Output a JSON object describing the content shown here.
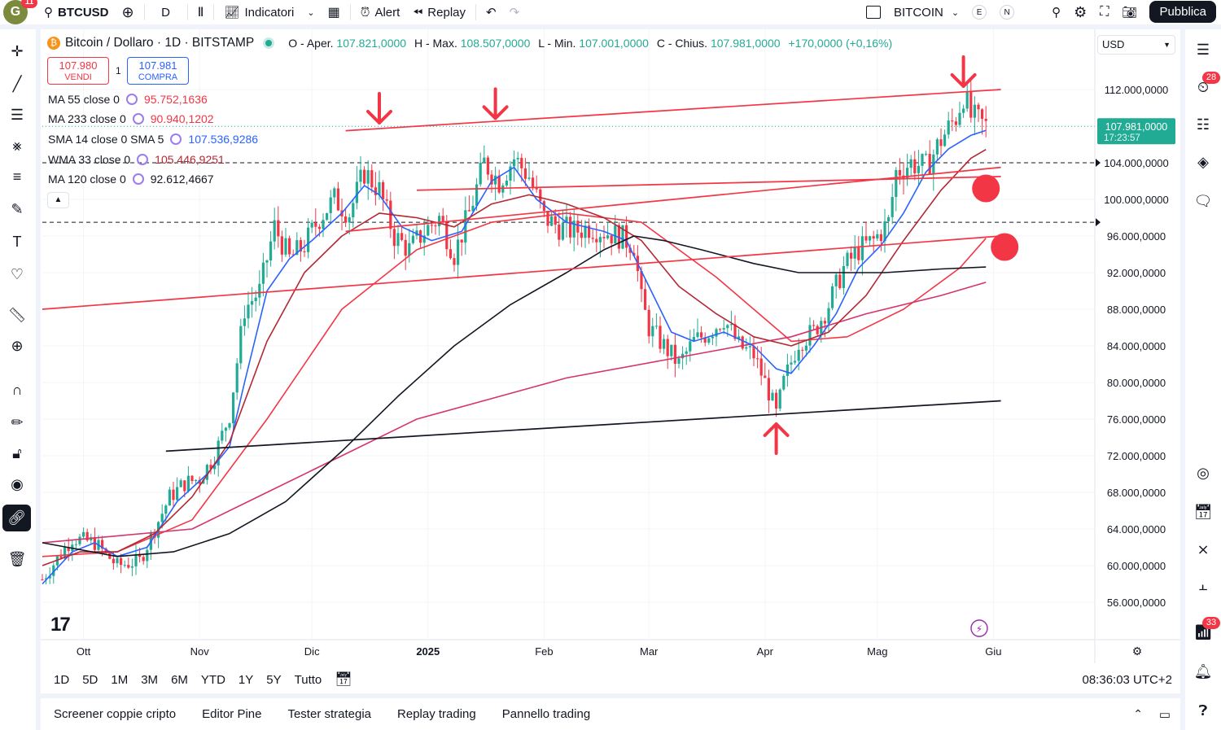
{
  "topbar": {
    "logo_letter": "G",
    "logo_badge": "11",
    "symbol": "BTCUSD",
    "interval": "D",
    "indicators_label": "Indicatori",
    "alert_label": "Alert",
    "replay_label": "Replay",
    "symbol_right": "BITCOIN",
    "e_label": "E",
    "n_label": "N",
    "publish_label": "Pubblica"
  },
  "legend": {
    "title": "Bitcoin / Dollaro · 1D · BITSTAMP",
    "open_label": "O - Aper.",
    "open": "107.821,0000",
    "high_label": "H - Max.",
    "high": "108.507,0000",
    "low_label": "L - Min.",
    "low": "107.001,0000",
    "close_label": "C - Chius.",
    "close": "107.981,0000",
    "change": "+170,0000 (+0,16%)",
    "sell_price": "107.980",
    "sell_label": "VENDI",
    "qty": "1",
    "buy_price": "107.981",
    "buy_label": "COMPRA",
    "indicators": [
      {
        "label": "MA 55 close 0",
        "value": "95.752,1636",
        "color": "#f23645"
      },
      {
        "label": "MA 233 close 0",
        "value": "90.940,1202",
        "color": "#f23645"
      },
      {
        "label": "SMA 14 close 0 SMA 5",
        "value": "107.536,9286",
        "color": "#2962ff"
      },
      {
        "label": "WMA 33 close 0",
        "value": "105.446,9251",
        "color": "#b22833"
      },
      {
        "label": "MA 120 close 0",
        "value": "92.612,4667",
        "color": "#131722"
      }
    ],
    "currency": "USD"
  },
  "chart_data": {
    "type": "candlestick",
    "symbol": "BTCUSD",
    "interval": "1D",
    "exchange": "BITSTAMP",
    "y_ticks": [
      56000,
      60000,
      64000,
      68000,
      72000,
      76000,
      80000,
      84000,
      88000,
      92000,
      96000,
      100000,
      104000,
      108000,
      112000
    ],
    "y_tick_labels": [
      "56.000,0000",
      "60.000,0000",
      "64.000,0000",
      "68.000,0000",
      "72.000,0000",
      "76.000,0000",
      "80.000,0000",
      "84.000,0000",
      "88.000,0000",
      "92.000,0000",
      "96.000,0000",
      "100.000,0000",
      "104.000,0000",
      "108.000,0000",
      "112.000,0000"
    ],
    "ylim": [
      53000,
      115500
    ],
    "x_ticks": [
      {
        "label": "Ott",
        "day": 11
      },
      {
        "label": "Nov",
        "day": 42
      },
      {
        "label": "Dic",
        "day": 72
      },
      {
        "label": "2025",
        "day": 103
      },
      {
        "label": "Feb",
        "day": 134
      },
      {
        "label": "Mar",
        "day": 162
      },
      {
        "label": "Apr",
        "day": 193
      },
      {
        "label": "Mag",
        "day": 223
      },
      {
        "label": "Giu",
        "day": 254
      }
    ],
    "last_price_label": "107.981,0000",
    "countdown": "17:23:57",
    "last_price": 107981,
    "dashed_levels": [
      104000,
      97500
    ],
    "close_path": [
      [
        0,
        58500
      ],
      [
        8,
        63000
      ],
      [
        14,
        62500
      ],
      [
        20,
        60000
      ],
      [
        26,
        60500
      ],
      [
        30,
        64000
      ],
      [
        34,
        67500
      ],
      [
        38,
        69000
      ],
      [
        42,
        69500
      ],
      [
        46,
        72000
      ],
      [
        50,
        76500
      ],
      [
        54,
        88000
      ],
      [
        58,
        90000
      ],
      [
        62,
        97000
      ],
      [
        66,
        93500
      ],
      [
        70,
        95000
      ],
      [
        74,
        98000
      ],
      [
        78,
        100000
      ],
      [
        82,
        98500
      ],
      [
        86,
        103000
      ],
      [
        90,
        101000
      ],
      [
        94,
        96000
      ],
      [
        98,
        94500
      ],
      [
        102,
        96500
      ],
      [
        106,
        98000
      ],
      [
        110,
        94000
      ],
      [
        114,
        98500
      ],
      [
        118,
        104000
      ],
      [
        122,
        102000
      ],
      [
        126,
        104500
      ],
      [
        130,
        102500
      ],
      [
        134,
        98000
      ],
      [
        138,
        97000
      ],
      [
        142,
        96500
      ],
      [
        146,
        97000
      ],
      [
        150,
        96500
      ],
      [
        154,
        96000
      ],
      [
        158,
        95000
      ],
      [
        160,
        89000
      ],
      [
        162,
        86000
      ],
      [
        166,
        84000
      ],
      [
        170,
        82000
      ],
      [
        174,
        84500
      ],
      [
        178,
        85500
      ],
      [
        182,
        87000
      ],
      [
        186,
        84000
      ],
      [
        190,
        83000
      ],
      [
        194,
        79000
      ],
      [
        196,
        76500
      ],
      [
        198,
        80000
      ],
      [
        202,
        84500
      ],
      [
        206,
        85500
      ],
      [
        210,
        88500
      ],
      [
        214,
        92500
      ],
      [
        218,
        94500
      ],
      [
        222,
        95500
      ],
      [
        226,
        97500
      ],
      [
        228,
        103000
      ],
      [
        232,
        104000
      ],
      [
        236,
        103500
      ],
      [
        240,
        106500
      ],
      [
        244,
        109000
      ],
      [
        246,
        111500
      ],
      [
        248,
        109000
      ],
      [
        252,
        107981
      ]
    ],
    "series": [
      {
        "name": "MA 55 close 0",
        "color": "#f23645",
        "points": [
          [
            0,
            61000
          ],
          [
            20,
            61500
          ],
          [
            40,
            65000
          ],
          [
            60,
            76000
          ],
          [
            80,
            88000
          ],
          [
            100,
            94500
          ],
          [
            120,
            97500
          ],
          [
            140,
            98500
          ],
          [
            160,
            97500
          ],
          [
            180,
            91500
          ],
          [
            200,
            84500
          ],
          [
            215,
            85000
          ],
          [
            230,
            88000
          ],
          [
            245,
            92500
          ],
          [
            252,
            95752
          ]
        ]
      },
      {
        "name": "MA 233 close 0",
        "color": "#d6336c",
        "points": [
          [
            0,
            62500
          ],
          [
            40,
            64000
          ],
          [
            60,
            68000
          ],
          [
            100,
            76000
          ],
          [
            140,
            80500
          ],
          [
            180,
            83500
          ],
          [
            200,
            85000
          ],
          [
            220,
            87500
          ],
          [
            240,
            89500
          ],
          [
            252,
            90940
          ]
        ]
      },
      {
        "name": "SMA 14 close 0 SMA 5",
        "color": "#2962ff",
        "points": [
          [
            0,
            58000
          ],
          [
            8,
            61500
          ],
          [
            14,
            62500
          ],
          [
            20,
            61000
          ],
          [
            28,
            62000
          ],
          [
            36,
            67000
          ],
          [
            44,
            70000
          ],
          [
            50,
            73000
          ],
          [
            54,
            80000
          ],
          [
            60,
            90000
          ],
          [
            66,
            93500
          ],
          [
            72,
            95500
          ],
          [
            80,
            98500
          ],
          [
            86,
            101500
          ],
          [
            90,
            100500
          ],
          [
            96,
            97000
          ],
          [
            104,
            95500
          ],
          [
            112,
            96500
          ],
          [
            120,
            102000
          ],
          [
            126,
            103500
          ],
          [
            132,
            100000
          ],
          [
            140,
            97500
          ],
          [
            150,
            96500
          ],
          [
            156,
            95500
          ],
          [
            162,
            90500
          ],
          [
            168,
            85500
          ],
          [
            174,
            84500
          ],
          [
            182,
            85500
          ],
          [
            190,
            84000
          ],
          [
            196,
            81500
          ],
          [
            200,
            81000
          ],
          [
            206,
            84000
          ],
          [
            212,
            87500
          ],
          [
            218,
            92500
          ],
          [
            224,
            95000
          ],
          [
            230,
            98500
          ],
          [
            236,
            103000
          ],
          [
            242,
            105500
          ],
          [
            248,
            107000
          ],
          [
            252,
            107537
          ]
        ]
      },
      {
        "name": "WMA 33 close 0",
        "color": "#b22833",
        "points": [
          [
            0,
            60000
          ],
          [
            10,
            61500
          ],
          [
            20,
            61500
          ],
          [
            30,
            63500
          ],
          [
            40,
            67500
          ],
          [
            50,
            73500
          ],
          [
            60,
            84500
          ],
          [
            70,
            92000
          ],
          [
            80,
            96000
          ],
          [
            90,
            98500
          ],
          [
            100,
            98000
          ],
          [
            110,
            97000
          ],
          [
            120,
            99500
          ],
          [
            130,
            100500
          ],
          [
            140,
            99500
          ],
          [
            150,
            98000
          ],
          [
            160,
            95500
          ],
          [
            170,
            90500
          ],
          [
            180,
            87500
          ],
          [
            190,
            85000
          ],
          [
            200,
            84000
          ],
          [
            210,
            85500
          ],
          [
            220,
            89500
          ],
          [
            230,
            95500
          ],
          [
            240,
            101000
          ],
          [
            248,
            104500
          ],
          [
            252,
            105447
          ]
        ]
      },
      {
        "name": "MA 120 close 0",
        "color": "#131722",
        "points": [
          [
            0,
            62500
          ],
          [
            20,
            61000
          ],
          [
            35,
            61500
          ],
          [
            50,
            63500
          ],
          [
            65,
            67000
          ],
          [
            80,
            72500
          ],
          [
            95,
            78500
          ],
          [
            110,
            84000
          ],
          [
            125,
            88500
          ],
          [
            140,
            92000
          ],
          [
            150,
            94500
          ],
          [
            158,
            96000
          ],
          [
            166,
            95500
          ],
          [
            176,
            94500
          ],
          [
            190,
            93000
          ],
          [
            202,
            92000
          ],
          [
            212,
            92000
          ],
          [
            225,
            92000
          ],
          [
            240,
            92400
          ],
          [
            252,
            92612
          ]
        ]
      }
    ],
    "trendlines": [
      {
        "color": "#f23645",
        "from": [
          81,
          107500
        ],
        "to": [
          256,
          112000
        ]
      },
      {
        "color": "#f23645",
        "from": [
          100,
          101000
        ],
        "to": [
          256,
          102500
        ]
      },
      {
        "color": "#f23645",
        "from": [
          81,
          96500
        ],
        "to": [
          256,
          103500
        ]
      },
      {
        "color": "#f23645",
        "from": [
          0,
          88000
        ],
        "to": [
          256,
          96000
        ]
      },
      {
        "color": "#131722",
        "from": [
          33,
          72500
        ],
        "to": [
          256,
          78000
        ]
      }
    ],
    "arrows": [
      {
        "dir": "down",
        "day": 90,
        "price": 108000
      },
      {
        "dir": "down",
        "day": 121,
        "price": 108500
      },
      {
        "dir": "down",
        "day": 246,
        "price": 112000
      },
      {
        "dir": "up",
        "day": 196,
        "price": 76000
      }
    ],
    "dots": [
      {
        "day": 252,
        "price": 101200
      },
      {
        "day": 257,
        "price": 94800
      }
    ]
  },
  "timeframes": [
    "1D",
    "5D",
    "1M",
    "3M",
    "6M",
    "YTD",
    "1Y",
    "5Y",
    "Tutto"
  ],
  "clock": "08:36:03 UTC+2",
  "bottom_tabs": [
    "Screener coppie cripto",
    "Editor Pine",
    "Tester strategia",
    "Replay trading",
    "Pannello trading"
  ],
  "right_badges": {
    "alerts": "28",
    "notifications": "33"
  }
}
